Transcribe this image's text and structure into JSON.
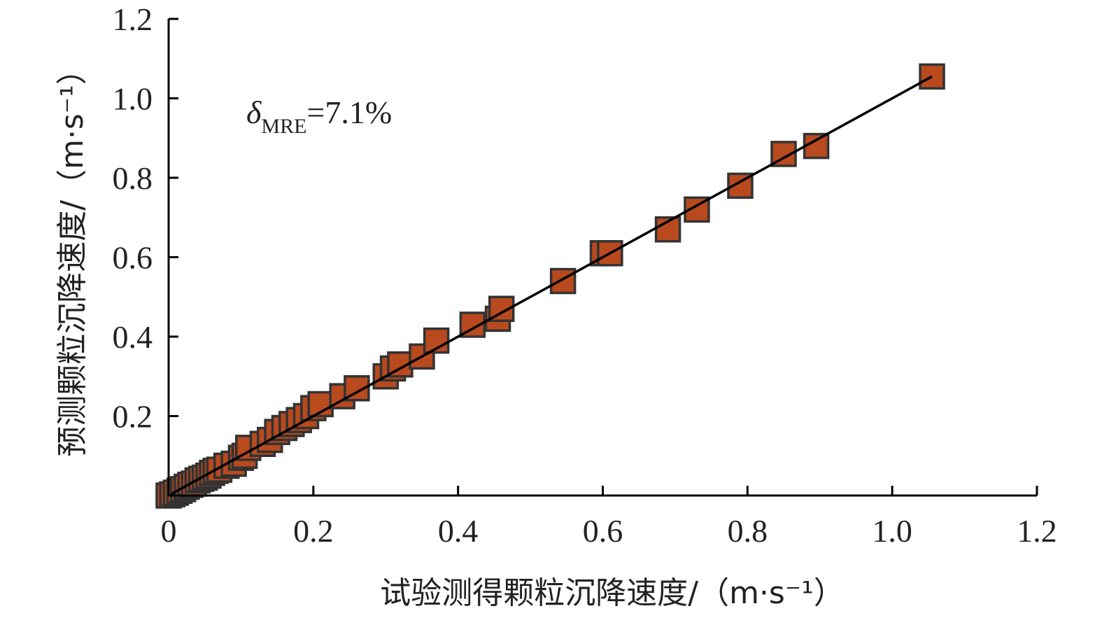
{
  "chart_data": {
    "type": "scatter",
    "xlabel": "试验测得颗粒沉降速度/（m·s⁻¹）",
    "ylabel": "预测颗粒沉降速度/（m·s⁻¹）",
    "xlim": [
      0,
      1.2
    ],
    "ylim": [
      0,
      1.2
    ],
    "x_ticks": [
      "0",
      "0.2",
      "0.4",
      "0.6",
      "0.8",
      "1.0",
      "1.2"
    ],
    "y_ticks": [
      "0.2",
      "0.4",
      "0.6",
      "0.8",
      "1.0",
      "1.2"
    ],
    "annotation": {
      "symbol": "δ",
      "subscript": "MRE",
      "text": "=7.1%"
    },
    "grid": false,
    "marker": "square",
    "colors": {
      "marker_fill": "#B84A1E",
      "marker_edge": "#333333",
      "line": "#000000"
    },
    "fit_line": {
      "x": [
        0.003,
        1.055
      ],
      "y": [
        0.003,
        1.055
      ]
    },
    "series": [
      {
        "points": [
          [
            0.0,
            0.0
          ],
          [
            0.005,
            0.003
          ],
          [
            0.01,
            0.007
          ],
          [
            0.015,
            0.012
          ],
          [
            0.02,
            0.016
          ],
          [
            0.025,
            0.022
          ],
          [
            0.03,
            0.027
          ],
          [
            0.035,
            0.03
          ],
          [
            0.04,
            0.038
          ],
          [
            0.045,
            0.042
          ],
          [
            0.05,
            0.045
          ],
          [
            0.055,
            0.05
          ],
          [
            0.06,
            0.057
          ],
          [
            0.065,
            0.062
          ],
          [
            0.07,
            0.065
          ],
          [
            0.08,
            0.075
          ],
          [
            0.09,
            0.08
          ],
          [
            0.1,
            0.095
          ],
          [
            0.105,
            0.1
          ],
          [
            0.11,
            0.12
          ],
          [
            0.13,
            0.13
          ],
          [
            0.14,
            0.14
          ],
          [
            0.15,
            0.16
          ],
          [
            0.16,
            0.17
          ],
          [
            0.17,
            0.18
          ],
          [
            0.18,
            0.19
          ],
          [
            0.19,
            0.2
          ],
          [
            0.2,
            0.22
          ],
          [
            0.21,
            0.23
          ],
          [
            0.24,
            0.25
          ],
          [
            0.26,
            0.27
          ],
          [
            0.3,
            0.3
          ],
          [
            0.31,
            0.32
          ],
          [
            0.32,
            0.33
          ],
          [
            0.35,
            0.35
          ],
          [
            0.37,
            0.39
          ],
          [
            0.42,
            0.43
          ],
          [
            0.455,
            0.445
          ],
          [
            0.46,
            0.47
          ],
          [
            0.545,
            0.54
          ],
          [
            0.6,
            0.61
          ],
          [
            0.61,
            0.61
          ],
          [
            0.69,
            0.67
          ],
          [
            0.73,
            0.72
          ],
          [
            0.79,
            0.78
          ],
          [
            0.85,
            0.86
          ],
          [
            0.895,
            0.88
          ],
          [
            1.055,
            1.055
          ]
        ]
      }
    ]
  }
}
